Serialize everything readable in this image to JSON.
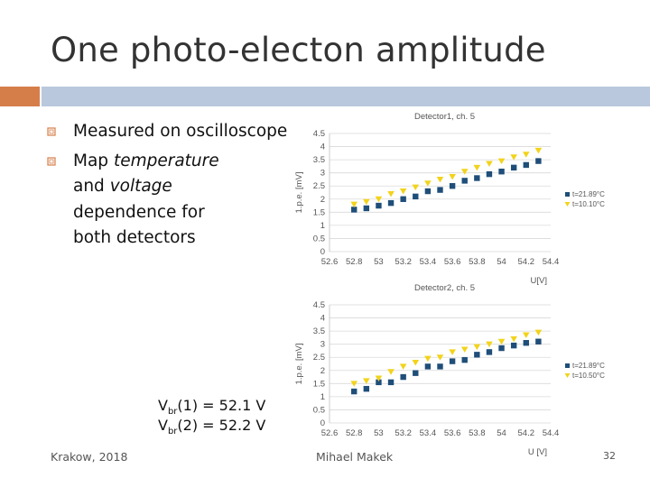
{
  "slide": {
    "title": "One photo-electon amplitude",
    "bullets": [
      {
        "parts": [
          {
            "text": "Measured on oscilloscope",
            "italic": false
          }
        ]
      },
      {
        "parts": [
          {
            "text": "Map ",
            "italic": false
          },
          {
            "text": "temperature",
            "italic": true
          },
          {
            "text": " and ",
            "italic": false
          },
          {
            "text": "voltage",
            "italic": true
          },
          {
            "text": " dependence for both detectors",
            "italic": false
          }
        ]
      }
    ],
    "vbr": [
      {
        "pre": "V",
        "sub": "br",
        "post": "(1) = 52.1 V"
      },
      {
        "pre": "V",
        "sub": "br",
        "post": "(2) = 52.2 V"
      }
    ],
    "footer": {
      "left": "Krakow, 2018",
      "center": "Mihael Makek",
      "page": "32"
    }
  },
  "colors": {
    "accent_orange": "#d67e4a",
    "accent_blue": "#b9c8dc",
    "series1": "#1f4e79",
    "series2": "#f2d31b"
  },
  "chart_data": [
    {
      "type": "scatter",
      "title": "Detector1, ch. 5",
      "xlabel": "U[V]",
      "ylabel": "1.p.e. [mV]",
      "xlim": [
        52.6,
        54.4
      ],
      "ylim": [
        0,
        4.5
      ],
      "xticks": [
        "52.6",
        "52.8",
        "53",
        "53.2",
        "53.4",
        "53.6",
        "53.8",
        "54",
        "54.2",
        "54.4"
      ],
      "yticks": [
        "0",
        "0.5",
        "1",
        "1.5",
        "2",
        "2.5",
        "3",
        "3.5",
        "4",
        "4.5"
      ],
      "legend_position": "right",
      "series": [
        {
          "name": "t=21.89°C",
          "marker": "square",
          "x": [
            52.8,
            52.9,
            53.0,
            53.1,
            53.2,
            53.3,
            53.4,
            53.5,
            53.6,
            53.7,
            53.8,
            53.9,
            54.0,
            54.1,
            54.2,
            54.3
          ],
          "y": [
            1.6,
            1.65,
            1.75,
            1.85,
            2.0,
            2.1,
            2.3,
            2.35,
            2.5,
            2.7,
            2.8,
            2.95,
            3.05,
            3.2,
            3.3,
            3.45
          ]
        },
        {
          "name": "t=10.10°C",
          "marker": "triangle",
          "x": [
            52.8,
            52.9,
            53.0,
            53.1,
            53.2,
            53.3,
            53.4,
            53.5,
            53.6,
            53.7,
            53.8,
            53.9,
            54.0,
            54.1,
            54.2,
            54.3
          ],
          "y": [
            1.8,
            1.9,
            2.0,
            2.2,
            2.3,
            2.45,
            2.6,
            2.75,
            2.85,
            3.05,
            3.2,
            3.35,
            3.45,
            3.6,
            3.7,
            3.85
          ]
        }
      ]
    },
    {
      "type": "scatter",
      "title": "Detector2, ch. 5",
      "xlabel": "U [V]",
      "ylabel": "1.p.e. [mV]",
      "xlim": [
        52.6,
        54.4
      ],
      "ylim": [
        0,
        4.5
      ],
      "xticks": [
        "52.6",
        "52.8",
        "53",
        "53.2",
        "53.4",
        "53.6",
        "53.8",
        "54",
        "54.2",
        "54.4"
      ],
      "yticks": [
        "0",
        "0.5",
        "1",
        "1.5",
        "2",
        "2.5",
        "3",
        "3.5",
        "4",
        "4.5"
      ],
      "legend_position": "right",
      "series": [
        {
          "name": "t=21.89°C",
          "marker": "square",
          "x": [
            52.8,
            52.9,
            53.0,
            53.1,
            53.2,
            53.3,
            53.4,
            53.5,
            53.6,
            53.7,
            53.8,
            53.9,
            54.0,
            54.1,
            54.2,
            54.3
          ],
          "y": [
            1.2,
            1.3,
            1.55,
            1.55,
            1.75,
            1.9,
            2.15,
            2.15,
            2.35,
            2.4,
            2.6,
            2.7,
            2.85,
            2.95,
            3.05,
            3.1
          ]
        },
        {
          "name": "t=10.50°C",
          "marker": "triangle",
          "x": [
            52.8,
            52.9,
            53.0,
            53.1,
            53.2,
            53.3,
            53.4,
            53.5,
            53.6,
            53.7,
            53.8,
            53.9,
            54.0,
            54.1,
            54.2,
            54.3
          ],
          "y": [
            1.5,
            1.6,
            1.7,
            1.95,
            2.15,
            2.3,
            2.45,
            2.5,
            2.7,
            2.8,
            2.9,
            3.0,
            3.1,
            3.2,
            3.35,
            3.45
          ]
        }
      ]
    }
  ]
}
